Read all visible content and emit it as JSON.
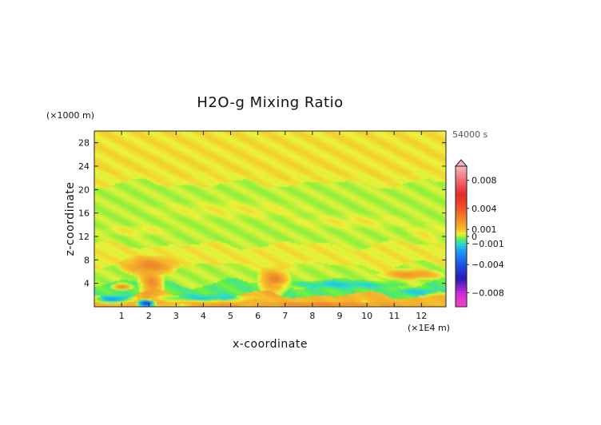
{
  "chart_data": {
    "type": "heatmap",
    "title": "H2O-g Mixing Ratio",
    "xlabel": "x-coordinate",
    "ylabel": "z-coordinate",
    "x_unit": "(×1E4 m)",
    "y_unit": "(×1000 m)",
    "time_label": "54000 s",
    "xlim": [
      0,
      12.9
    ],
    "ylim": [
      0,
      30
    ],
    "x_ticks": [
      1,
      2,
      3,
      4,
      5,
      6,
      7,
      8,
      9,
      10,
      11,
      12
    ],
    "y_ticks": [
      4,
      8,
      12,
      16,
      20,
      24,
      28
    ],
    "colorbar": {
      "range": [
        -0.01,
        0.01
      ],
      "tick_labels": [
        {
          "value": 0.008,
          "label": "0.008"
        },
        {
          "value": 0.004,
          "label": "0.004"
        },
        {
          "value": 0.001,
          "label": "0.001"
        },
        {
          "value": 0,
          "label": "0"
        },
        {
          "value": -0.001,
          "label": "−0.001"
        },
        {
          "value": -0.004,
          "label": "−0.004"
        },
        {
          "value": -0.008,
          "label": "−0.008"
        }
      ],
      "stops": [
        {
          "value": -0.01,
          "color": "#ff3ec8"
        },
        {
          "value": -0.008,
          "color": "#c82cd8"
        },
        {
          "value": -0.006,
          "color": "#2a1ab0"
        },
        {
          "value": -0.004,
          "color": "#1f4ee6"
        },
        {
          "value": -0.002,
          "color": "#1d9ef2"
        },
        {
          "value": -0.001,
          "color": "#2ad9d6"
        },
        {
          "value": -0.0003,
          "color": "#5ff04a"
        },
        {
          "value": 0.0,
          "color": "#a6f03a"
        },
        {
          "value": 0.0004,
          "color": "#ecf23a"
        },
        {
          "value": 0.001,
          "color": "#f5c02a"
        },
        {
          "value": 0.0025,
          "color": "#f08a2a"
        },
        {
          "value": 0.004,
          "color": "#f0532a"
        },
        {
          "value": 0.006,
          "color": "#e82a2a"
        },
        {
          "value": 0.008,
          "color": "#f06a70"
        },
        {
          "value": 0.01,
          "color": "#f8b4b8"
        }
      ]
    },
    "field": {
      "background_layers": [
        {
          "z": [
            0,
            2
          ],
          "value": 0.0012
        },
        {
          "z": [
            2,
            4
          ],
          "value": -0.0004
        },
        {
          "z": [
            4,
            7
          ],
          "value": 0.0001
        },
        {
          "z": [
            7,
            10.5
          ],
          "value": 0.0005
        },
        {
          "z": [
            10.5,
            21
          ],
          "value": 0.0001
        },
        {
          "z": [
            21,
            22.5
          ],
          "value": 0.0005
        },
        {
          "z": [
            22.5,
            30
          ],
          "value": 0.0006
        }
      ],
      "features": [
        {
          "x": 2.0,
          "z": 7.0,
          "rx": 0.9,
          "rz": 1.4,
          "value": 0.0026
        },
        {
          "x": 2.1,
          "z": 4.0,
          "rx": 0.4,
          "rz": 2.4,
          "value": 0.0024
        },
        {
          "x": 1.0,
          "z": 3.4,
          "rx": 0.35,
          "rz": 0.5,
          "value": 0.0024
        },
        {
          "x": 6.6,
          "z": 4.5,
          "rx": 0.5,
          "rz": 2.2,
          "value": 0.0026
        },
        {
          "x": 6.5,
          "z": 8.0,
          "rx": 1.3,
          "rz": 1.8,
          "value": 0.0005
        },
        {
          "x": 11.6,
          "z": 5.5,
          "rx": 1.0,
          "rz": 0.8,
          "value": 0.0022
        },
        {
          "x": 8.4,
          "z": 0.4,
          "rx": 3.0,
          "rz": 0.4,
          "value": 0.0025
        },
        {
          "x": 4.5,
          "z": 0.3,
          "rx": 1.0,
          "rz": 0.3,
          "value": 0.002
        },
        {
          "x": 0.7,
          "z": 1.3,
          "rx": 0.7,
          "rz": 0.6,
          "value": -0.002
        },
        {
          "x": 1.9,
          "z": 0.6,
          "rx": 0.3,
          "rz": 0.6,
          "value": -0.004
        },
        {
          "x": 4.0,
          "z": 1.5,
          "rx": 1.6,
          "rz": 0.6,
          "value": -0.0012
        },
        {
          "x": 9.0,
          "z": 3.8,
          "rx": 2.0,
          "rz": 0.6,
          "value": -0.0012
        },
        {
          "x": 12.0,
          "z": 2.5,
          "rx": 0.9,
          "rz": 0.6,
          "value": -0.0012
        },
        {
          "x": 5.0,
          "z": 16.5,
          "rx": 2.5,
          "rz": 1.2,
          "value": 0.0005
        },
        {
          "x": 9.5,
          "z": 14.5,
          "rx": 2.0,
          "rz": 1.0,
          "value": 0.0005
        },
        {
          "x": 1.5,
          "z": 13.0,
          "rx": 1.2,
          "rz": 0.8,
          "value": 0.0005
        },
        {
          "x": 12.2,
          "z": 12.5,
          "rx": 0.6,
          "rz": 1.4,
          "value": 0.0005
        }
      ]
    }
  }
}
